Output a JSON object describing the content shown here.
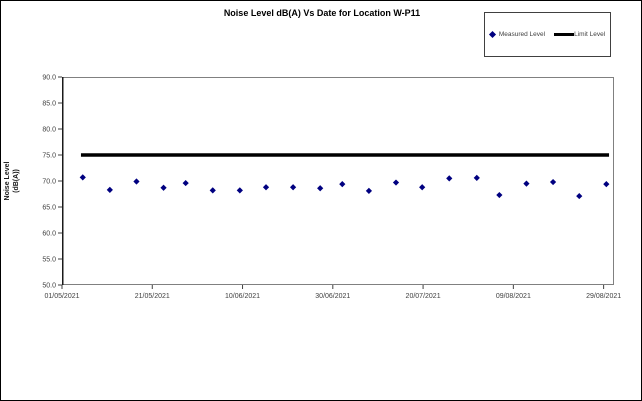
{
  "window": {
    "background": "#ffffff",
    "border_color": "#000000"
  },
  "chart_data": {
    "type": "scatter",
    "title": "Noise Level dB(A) Vs Date for Location W-P11",
    "ylabel_lines": [
      "Noise Level",
      "(dB(A))"
    ],
    "xlabel": "",
    "ylim": [
      50.0,
      90.0
    ],
    "y_tick_step": 5.0,
    "y_ticks": [
      90.0,
      85.0,
      80.0,
      75.0,
      70.0,
      65.0,
      60.0,
      55.0,
      50.0
    ],
    "x_axis": {
      "tick_labels": [
        "01/05/2021",
        "21/05/2021",
        "10/06/2021",
        "30/06/2021",
        "20/07/2021",
        "09/08/2021",
        "29/08/2021"
      ],
      "tick_days": [
        0,
        20,
        40,
        60,
        80,
        100,
        120
      ],
      "max_day": 122.3
    },
    "grid": false,
    "legend_position": "top-right",
    "legend": [
      {
        "label": "Measured Level",
        "swatch": "diamond",
        "color": "#000080"
      },
      {
        "label": "Limit Level",
        "swatch": "line",
        "color": "#000000"
      }
    ],
    "series": [
      {
        "name": "Measured Level",
        "marker": "diamond",
        "color": "#000080",
        "points": [
          {
            "date": "06/05/2021",
            "day": 4.6,
            "value": 70.7
          },
          {
            "date": "12/05/2021",
            "day": 10.6,
            "value": 68.3
          },
          {
            "date": "18/05/2021",
            "day": 16.5,
            "value": 69.9
          },
          {
            "date": "24/05/2021",
            "day": 22.5,
            "value": 68.7
          },
          {
            "date": "28/05/2021",
            "day": 27.4,
            "value": 69.6
          },
          {
            "date": "03/06/2021",
            "day": 33.4,
            "value": 68.2
          },
          {
            "date": "09/06/2021",
            "day": 39.4,
            "value": 68.2
          },
          {
            "date": "15/06/2021",
            "day": 45.2,
            "value": 68.8
          },
          {
            "date": "21/06/2021",
            "day": 51.2,
            "value": 68.8
          },
          {
            "date": "27/06/2021",
            "day": 57.2,
            "value": 68.6
          },
          {
            "date": "02/07/2021",
            "day": 62.1,
            "value": 69.4
          },
          {
            "date": "08/07/2021",
            "day": 68.0,
            "value": 68.1
          },
          {
            "date": "14/07/2021",
            "day": 74.0,
            "value": 69.7
          },
          {
            "date": "20/07/2021",
            "day": 79.8,
            "value": 68.8
          },
          {
            "date": "26/07/2021",
            "day": 85.8,
            "value": 70.5
          },
          {
            "date": "01/08/2021",
            "day": 91.9,
            "value": 70.6
          },
          {
            "date": "06/08/2021",
            "day": 96.9,
            "value": 67.3
          },
          {
            "date": "12/08/2021",
            "day": 102.9,
            "value": 69.5
          },
          {
            "date": "18/08/2021",
            "day": 108.8,
            "value": 69.8
          },
          {
            "date": "23/08/2021",
            "day": 114.6,
            "value": 67.1
          },
          {
            "date": "29/08/2021",
            "day": 120.6,
            "value": 69.4
          }
        ]
      },
      {
        "name": "Limit Level",
        "kind": "limit-line",
        "color": "#000000",
        "value": 75.0,
        "span_days": [
          4.2,
          121.2
        ],
        "stroke_width": 3.5
      }
    ],
    "colors": {
      "plot_border": "#808080",
      "axis_line": "#1a1a1a",
      "tick_mark": "#404040",
      "tick_label": "#3f3f3f"
    }
  }
}
